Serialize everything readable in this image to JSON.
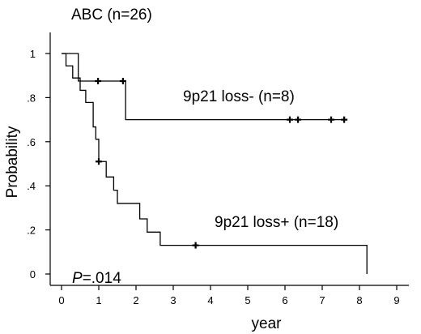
{
  "chart_data": {
    "type": "km",
    "title": "ABC (n=26)",
    "x_label": "year",
    "y_label": "Probability",
    "annotation_p": "P",
    "annotation_value": "=.014",
    "xlim": [
      0,
      9.6
    ],
    "ylim": [
      0,
      1.06
    ],
    "xticks": [
      0,
      1,
      2,
      3,
      4,
      5,
      6,
      7,
      8,
      9
    ],
    "yticks": [
      0,
      {
        "value": 0.2,
        "label": ".2"
      },
      {
        "value": 0.4,
        "label": ".4"
      },
      {
        "value": 0.6,
        "label": ".6"
      },
      {
        "value": 0.8,
        "label": ".8"
      },
      1
    ],
    "color": "#000000",
    "series": [
      {
        "name": "9p21 loss- (n=8)",
        "x": [
          0,
          0.45,
          1.72,
          7.67
        ],
        "values": [
          1,
          0.875,
          0.7,
          0.7
        ],
        "censored_x": [
          0.98,
          1.65,
          6.13,
          6.35,
          7.24,
          7.59
        ],
        "censored_values": [
          0.875,
          0.875,
          0.7,
          0.7,
          0.7,
          0.7
        ]
      },
      {
        "name": "9p21 loss+ (n=18)",
        "x": [
          0,
          0.12,
          0.3,
          0.5,
          0.65,
          0.85,
          0.92,
          1.0,
          1.2,
          1.4,
          1.5,
          2.1,
          2.3,
          2.65,
          8.2
        ],
        "values": [
          1,
          0.944,
          0.889,
          0.833,
          0.778,
          0.667,
          0.611,
          0.51,
          0.44,
          0.38,
          0.32,
          0.25,
          0.19,
          0.13,
          0
        ],
        "censored_x": [
          1.0,
          3.6
        ],
        "censored_values": [
          0.51,
          0.13
        ]
      }
    ]
  }
}
